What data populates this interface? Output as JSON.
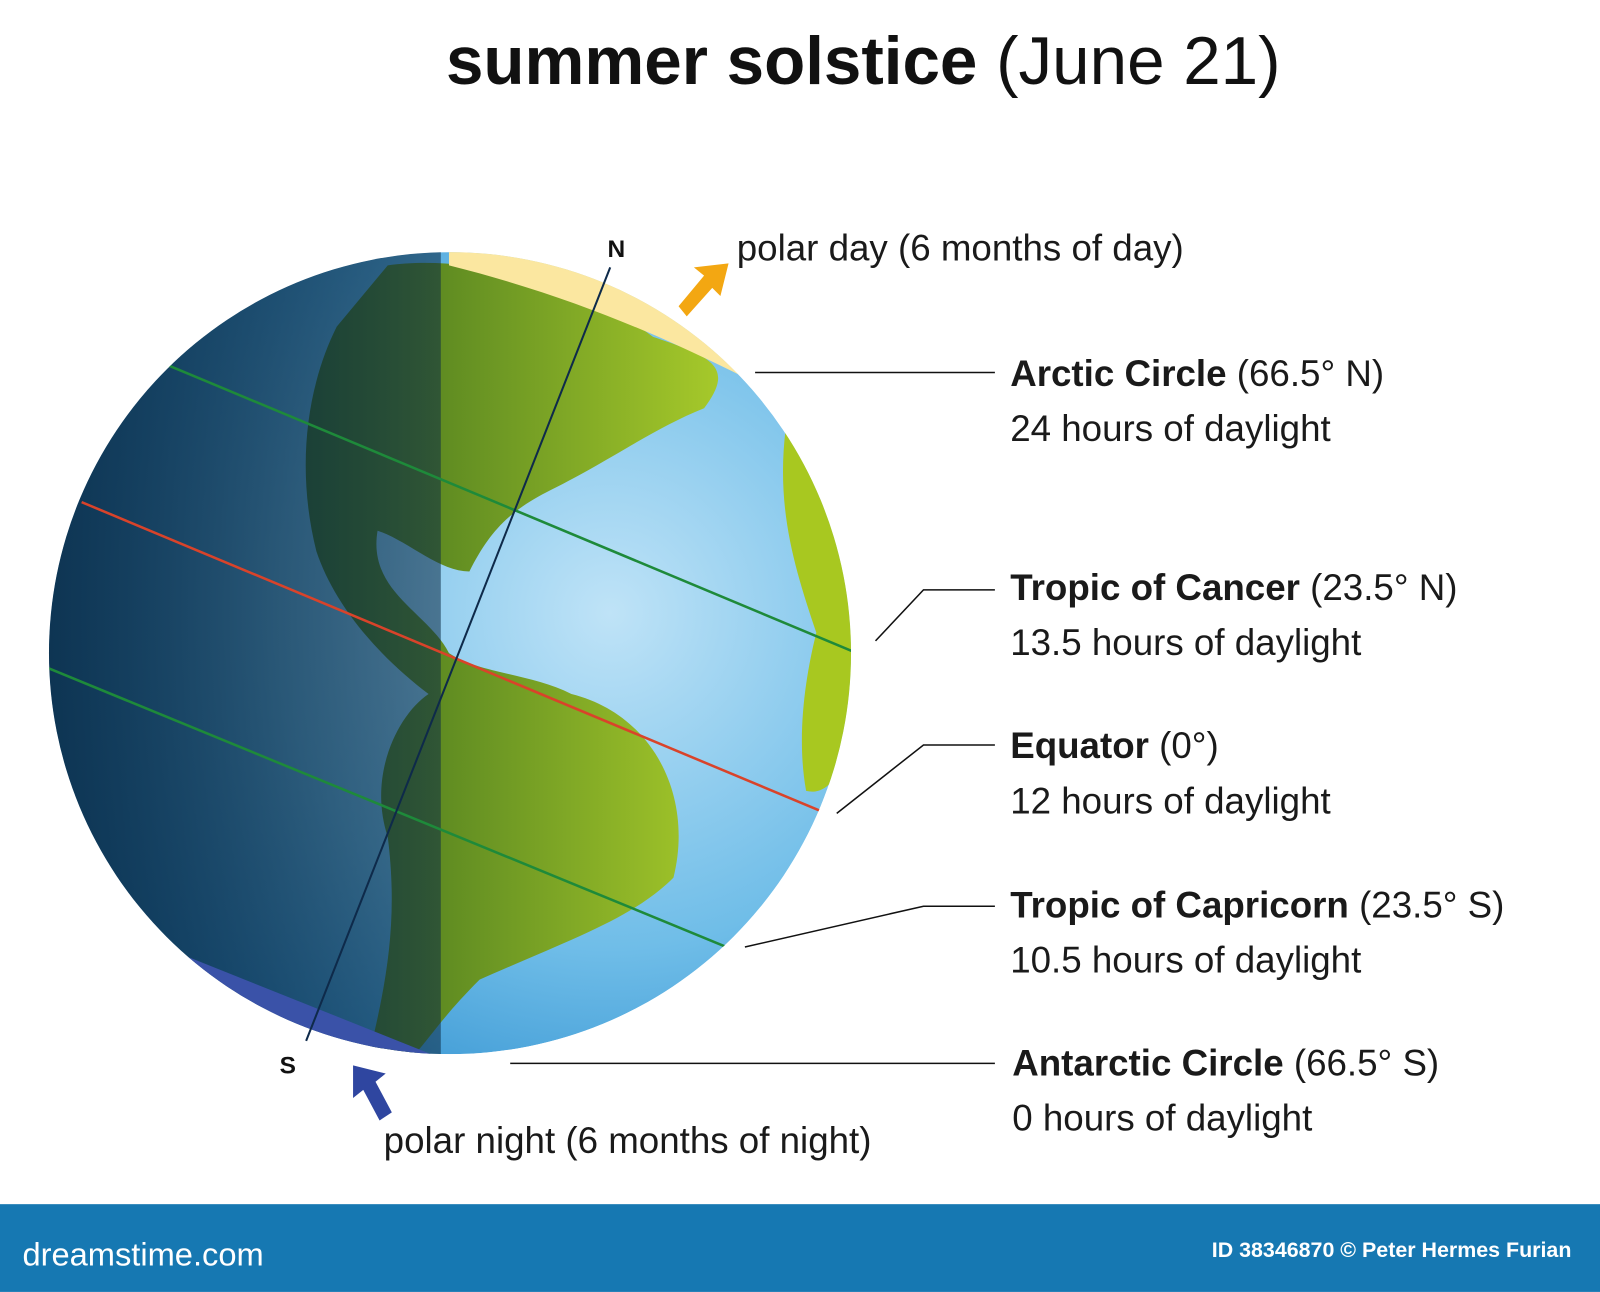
{
  "title": {
    "main": "summer solstice",
    "date": "(June 21)"
  },
  "poles": {
    "north": "N",
    "south": "S"
  },
  "polar_day": "polar day (6 months of day)",
  "polar_night": "polar night (6 months of night)",
  "circles": [
    {
      "name": "Arctic Circle",
      "latitude": "(66.5° N)",
      "daylight": "24 hours of daylight"
    },
    {
      "name": "Tropic of Cancer",
      "latitude": "(23.5° N)",
      "daylight": "13.5 hours of daylight"
    },
    {
      "name": "Equator",
      "latitude": "(0°)",
      "daylight": "12 hours of daylight"
    },
    {
      "name": "Tropic of Capricorn",
      "latitude": "(23.5° S)",
      "daylight": "10.5 hours of daylight"
    },
    {
      "name": "Antarctic Circle",
      "latitude": "(66.5° S)",
      "daylight": "0 hours of daylight"
    }
  ],
  "footer": {
    "brand": "dreamstime.com",
    "credit": "ID 38346870 © Peter Hermes Furian"
  }
}
